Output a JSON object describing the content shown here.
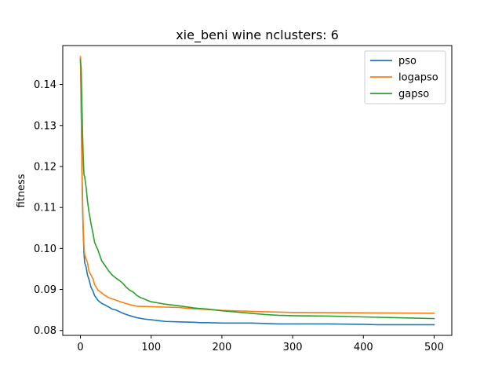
{
  "chart_data": {
    "type": "line",
    "title": "xie_beni wine nclusters: 6",
    "xlabel": "",
    "ylabel": "fitness",
    "xlim": [
      -25,
      525
    ],
    "ylim": [
      0.0788,
      0.1495
    ],
    "xticks": [
      0,
      100,
      200,
      300,
      400,
      500
    ],
    "xtick_labels": [
      "0",
      "100",
      "200",
      "300",
      "400",
      "500"
    ],
    "yticks": [
      0.08,
      0.09,
      0.1,
      0.11,
      0.12,
      0.13,
      0.14
    ],
    "ytick_labels": [
      "0.08",
      "0.09",
      "0.10",
      "0.11",
      "0.12",
      "0.13",
      "0.14"
    ],
    "grid": false,
    "legend_position": "top-right",
    "series": [
      {
        "name": "pso",
        "color": "#1f77b4",
        "x": [
          0,
          1,
          2,
          3,
          4,
          5,
          6,
          8,
          10,
          12,
          15,
          18,
          20,
          25,
          30,
          35,
          40,
          45,
          50,
          60,
          70,
          80,
          90,
          100,
          110,
          120,
          140,
          160,
          170,
          180,
          200,
          220,
          240,
          260,
          280,
          300,
          350,
          400,
          420,
          450,
          500
        ],
        "values": [
          0.1465,
          0.135,
          0.121,
          0.11,
          0.1035,
          0.099,
          0.0965,
          0.0955,
          0.0935,
          0.0925,
          0.0905,
          0.0895,
          0.0885,
          0.0873,
          0.0866,
          0.0862,
          0.0857,
          0.0852,
          0.085,
          0.0842,
          0.0836,
          0.0831,
          0.0828,
          0.0826,
          0.0824,
          0.0822,
          0.0821,
          0.082,
          0.0819,
          0.0819,
          0.0818,
          0.0818,
          0.0818,
          0.0817,
          0.0816,
          0.0816,
          0.0816,
          0.0815,
          0.0814,
          0.0814,
          0.0814
        ]
      },
      {
        "name": "logapso",
        "color": "#ff7f0e",
        "x": [
          0,
          1,
          2,
          3,
          4,
          5,
          6,
          8,
          10,
          12,
          15,
          18,
          20,
          25,
          30,
          35,
          40,
          50,
          60,
          70,
          80,
          100,
          120,
          140,
          150,
          200,
          250,
          300,
          400,
          500
        ],
        "values": [
          0.1468,
          0.138,
          0.122,
          0.112,
          0.105,
          0.1005,
          0.0985,
          0.0975,
          0.0965,
          0.0945,
          0.0935,
          0.0925,
          0.0912,
          0.0898,
          0.0892,
          0.0885,
          0.088,
          0.0874,
          0.0868,
          0.0863,
          0.0859,
          0.0858,
          0.0857,
          0.0856,
          0.0854,
          0.0849,
          0.0846,
          0.0844,
          0.0843,
          0.0842
        ]
      },
      {
        "name": "gapso",
        "color": "#2ca02c",
        "x": [
          0,
          1,
          2,
          3,
          4,
          5,
          6,
          8,
          10,
          12,
          15,
          18,
          20,
          25,
          30,
          35,
          40,
          45,
          50,
          55,
          60,
          65,
          70,
          75,
          80,
          85,
          90,
          95,
          100,
          110,
          120,
          140,
          160,
          180,
          200,
          220,
          240,
          260,
          280,
          300,
          350,
          400,
          450,
          500
        ],
        "values": [
          0.146,
          0.144,
          0.136,
          0.128,
          0.122,
          0.118,
          0.1175,
          0.115,
          0.1115,
          0.109,
          0.106,
          0.1035,
          0.1015,
          0.0995,
          0.097,
          0.0958,
          0.0945,
          0.0935,
          0.0928,
          0.0922,
          0.0915,
          0.0905,
          0.0898,
          0.0893,
          0.0885,
          0.088,
          0.0877,
          0.0873,
          0.087,
          0.0867,
          0.0864,
          0.086,
          0.0855,
          0.0852,
          0.0848,
          0.0845,
          0.0842,
          0.0839,
          0.0837,
          0.0836,
          0.0835,
          0.0833,
          0.0831,
          0.0829
        ]
      }
    ]
  }
}
